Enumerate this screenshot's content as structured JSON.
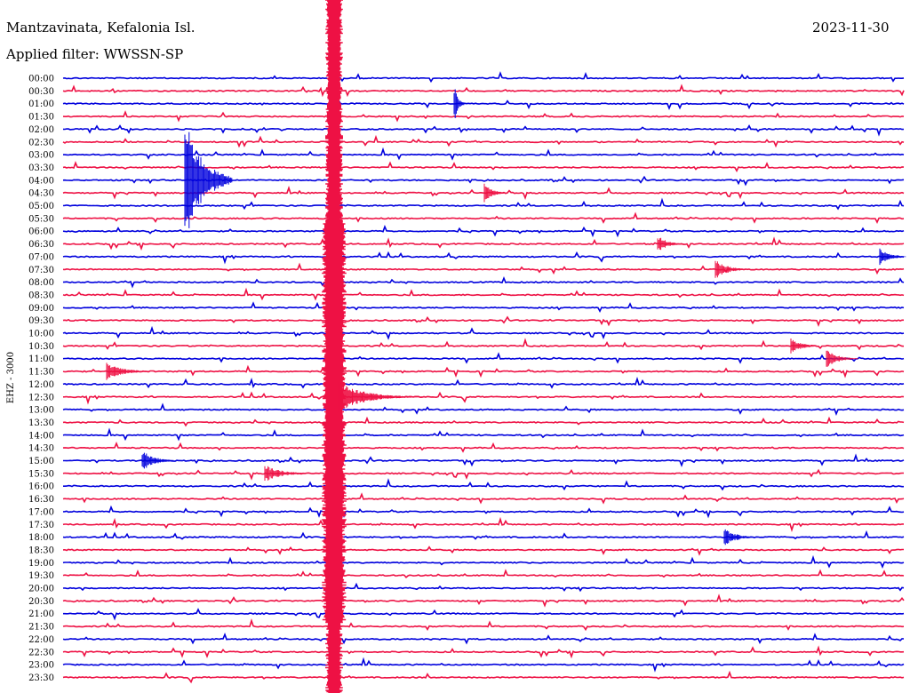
{
  "header": {
    "station": "Mantzavinata, Kefalonia Isl.",
    "date": "2023-11-30",
    "filter": "Applied filter: WWSSN-SP"
  },
  "chart_data": {
    "type": "line",
    "channel_label": "EHZ - 3000",
    "time_labels": [
      "00:00",
      "00:30",
      "01:00",
      "01:30",
      "02:00",
      "02:30",
      "03:00",
      "03:30",
      "04:00",
      "04:30",
      "05:00",
      "05:30",
      "06:00",
      "06:30",
      "07:00",
      "07:30",
      "08:00",
      "08:30",
      "09:00",
      "09:30",
      "10:00",
      "10:30",
      "11:00",
      "11:30",
      "12:00",
      "12:30",
      "13:00",
      "13:30",
      "14:00",
      "14:30",
      "15:00",
      "15:30",
      "16:00",
      "16:30",
      "17:00",
      "17:30",
      "18:00",
      "18:30",
      "19:00",
      "19:30",
      "20:00",
      "20:30",
      "21:00",
      "21:30",
      "22:00",
      "22:30",
      "23:00",
      "23:30"
    ],
    "colors": {
      "even": "#0000dd",
      "odd": "#ee1144"
    },
    "grid": false
  }
}
